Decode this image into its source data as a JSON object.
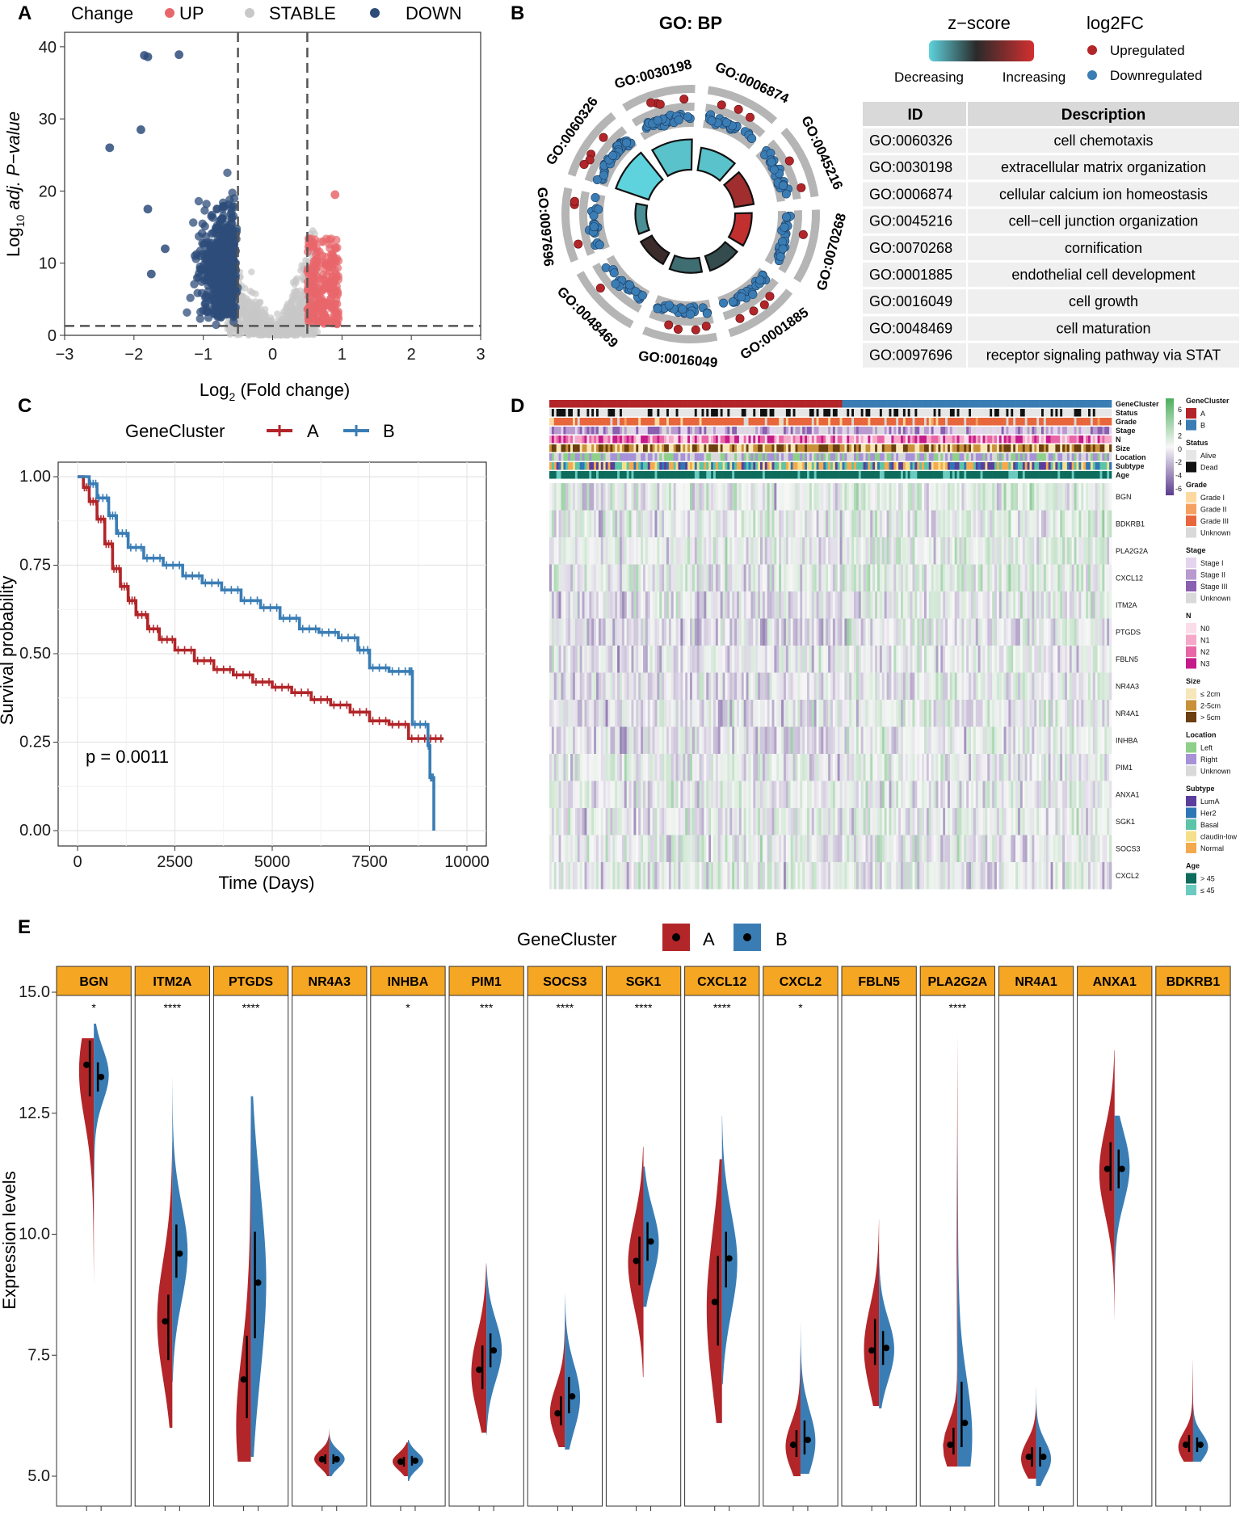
{
  "panels": {
    "a": "A",
    "b": "B",
    "c": "C",
    "d": "D",
    "e": "E"
  },
  "chart_data": [
    {
      "id": "A",
      "type": "scatter",
      "title": "",
      "xlabel": "Log2 (Fold change)",
      "xlabel_parts": [
        "Log",
        "2",
        " (Fold change)"
      ],
      "ylabel_parts": [
        "Log",
        "10",
        " adj. P−value"
      ],
      "xlim": [
        -3,
        3
      ],
      "ylim": [
        0,
        42
      ],
      "xticks": [
        "−3",
        "−2",
        "−1",
        "0",
        "1",
        "2",
        "3"
      ],
      "xtick_values": [
        -3,
        -2,
        -1,
        0,
        1,
        2,
        3
      ],
      "yticks": [
        "0",
        "10",
        "20",
        "30",
        "40"
      ],
      "ytick_values": [
        0,
        10,
        20,
        30,
        40
      ],
      "fc_cutoffs": [
        -0.5,
        0.5
      ],
      "p_cutoff": 1.3,
      "legend_title": "Change",
      "legend": [
        {
          "name": "UP",
          "color": "#E8676B"
        },
        {
          "name": "STABLE",
          "color": "#C8C8C8"
        },
        {
          "name": "DOWN",
          "color": "#2E4C7A"
        }
      ],
      "outlier_points": [
        {
          "x": -1.85,
          "y": 38.8,
          "group": "DOWN"
        },
        {
          "x": -1.8,
          "y": 38.6,
          "group": "DOWN"
        },
        {
          "x": -1.35,
          "y": 38.9,
          "group": "DOWN"
        },
        {
          "x": -2.35,
          "y": 26.0,
          "group": "DOWN"
        },
        {
          "x": -1.8,
          "y": 17.5,
          "group": "DOWN"
        },
        {
          "x": -1.75,
          "y": 8.5,
          "group": "DOWN"
        },
        {
          "x": -1.55,
          "y": 12.0,
          "group": "DOWN"
        },
        {
          "x": -1.9,
          "y": 28.5,
          "group": "DOWN"
        },
        {
          "x": 0.9,
          "y": 19.5,
          "group": "UP"
        }
      ]
    },
    {
      "id": "B",
      "type": "circular-go",
      "title": "GO: BP",
      "zscore_title": "z−score",
      "zscore_low": "Decreasing",
      "zscore_high": "Increasing",
      "log2fc_title": "log2FC",
      "log2fc_legend": [
        {
          "name": "Upregulated",
          "color": "#B22529"
        },
        {
          "name": "Downregulated",
          "color": "#3A7DB5"
        }
      ],
      "table_headers": [
        "ID",
        "Description"
      ],
      "terms": [
        {
          "id": "GO:0060326",
          "desc": "cell chemotaxis",
          "count": 0.95,
          "zscore": -1.0
        },
        {
          "id": "GO:0030198",
          "desc": "extracellular matrix organization",
          "count": 0.82,
          "zscore": -0.9
        },
        {
          "id": "GO:0006874",
          "desc": "cellular calcium ion homeostasis",
          "count": 0.6,
          "zscore": -0.9
        },
        {
          "id": "GO:0045216",
          "desc": "cell−cell junction organization",
          "count": 0.5,
          "zscore": 0.7
        },
        {
          "id": "GO:0070268",
          "desc": "cornification",
          "count": 0.42,
          "zscore": 0.9
        },
        {
          "id": "GO:0001885",
          "desc": "endothelial cell development",
          "count": 0.38,
          "zscore": -0.2
        },
        {
          "id": "GO:0016049",
          "desc": "cell growth",
          "count": 0.35,
          "zscore": -0.4
        },
        {
          "id": "GO:0048469",
          "desc": "cell maturation",
          "count": 0.3,
          "zscore": 0.1
        },
        {
          "id": "GO:0097696",
          "desc": "receptor signaling pathway via STAT",
          "count": 0.25,
          "zscore": -0.6
        }
      ]
    },
    {
      "id": "C",
      "type": "line",
      "legend_title": "GeneCluster",
      "series": [
        {
          "name": "A",
          "color": "#B22529",
          "x": [
            0,
            150,
            300,
            500,
            700,
            900,
            1100,
            1300,
            1500,
            1800,
            2100,
            2500,
            3000,
            3500,
            4000,
            4500,
            5000,
            5500,
            6000,
            6500,
            7000,
            7500,
            8000,
            8500,
            9000,
            9400
          ],
          "y": [
            1.0,
            0.97,
            0.93,
            0.88,
            0.81,
            0.74,
            0.69,
            0.65,
            0.61,
            0.57,
            0.54,
            0.51,
            0.48,
            0.455,
            0.44,
            0.42,
            0.405,
            0.39,
            0.37,
            0.355,
            0.335,
            0.31,
            0.3,
            0.26,
            0.26,
            0.26
          ]
        },
        {
          "name": "B",
          "color": "#3A7DB5",
          "x": [
            0,
            300,
            500,
            800,
            1000,
            1300,
            1700,
            2200,
            2700,
            3200,
            3700,
            4200,
            4700,
            5200,
            5700,
            6200,
            6700,
            7200,
            7500,
            8000,
            8500,
            8600,
            9000,
            9050,
            9150
          ],
          "y": [
            1.0,
            0.98,
            0.94,
            0.89,
            0.84,
            0.8,
            0.77,
            0.75,
            0.72,
            0.7,
            0.68,
            0.65,
            0.63,
            0.6,
            0.57,
            0.56,
            0.545,
            0.51,
            0.46,
            0.45,
            0.45,
            0.3,
            0.24,
            0.15,
            0.0
          ]
        }
      ],
      "xlabel": "Time (Days)",
      "ylabel": "Survival probability",
      "xlim": [
        0,
        10000
      ],
      "ylim": [
        0,
        1
      ],
      "xticks": [
        "0",
        "2500",
        "5000",
        "7500",
        "10000"
      ],
      "xtick_values": [
        0,
        2500,
        5000,
        7500,
        10000
      ],
      "yticks": [
        "0.00",
        "0.25",
        "0.50",
        "0.75",
        "1.00"
      ],
      "ytick_values": [
        0,
        0.25,
        0.5,
        0.75,
        1.0
      ],
      "annotation": "p = 0.0011"
    },
    {
      "id": "D",
      "type": "heatmap",
      "annotation_rows": [
        "GeneCluster",
        "Status",
        "Grade",
        "Stage",
        "N",
        "Size",
        "Location",
        "Subtype",
        "Age"
      ],
      "genes": [
        "BGN",
        "BDKRB1",
        "PLA2G2A",
        "CXCL12",
        "ITM2A",
        "PTGDS",
        "FBLN5",
        "NR4A3",
        "NR4A1",
        "INHBA",
        "PIM1",
        "ANXA1",
        "SGK1",
        "SOCS3",
        "CXCL2"
      ],
      "colorbar_ticks": [
        "6",
        "4",
        "2",
        "0",
        "-2",
        "-4",
        "-6"
      ],
      "legends": [
        {
          "title": "GeneCluster",
          "items": [
            {
              "label": "A",
              "color": "#B22529"
            },
            {
              "label": "B",
              "color": "#3A7DB5"
            }
          ]
        },
        {
          "title": "Status",
          "items": [
            {
              "label": "Alive",
              "color": "#E6E6E6"
            },
            {
              "label": "Dead",
              "color": "#111111"
            }
          ]
        },
        {
          "title": "Grade",
          "items": [
            {
              "label": "Grade I",
              "color": "#FDD9A0"
            },
            {
              "label": "Grade II",
              "color": "#F5A060"
            },
            {
              "label": "Grade III",
              "color": "#E8663C"
            },
            {
              "label": "Unknown",
              "color": "#D9D9D9"
            }
          ]
        },
        {
          "title": "Stage",
          "items": [
            {
              "label": "Stage I",
              "color": "#E4D5EE"
            },
            {
              "label": "Stage II",
              "color": "#B89ACF"
            },
            {
              "label": "Stage III",
              "color": "#8A5FB0"
            },
            {
              "label": "Unknown",
              "color": "#D9D9D9"
            }
          ]
        },
        {
          "title": "N",
          "items": [
            {
              "label": "N0",
              "color": "#FBDDE9"
            },
            {
              "label": "N1",
              "color": "#F5A8C8"
            },
            {
              "label": "N2",
              "color": "#E866A6"
            },
            {
              "label": "N3",
              "color": "#C51B8A"
            }
          ]
        },
        {
          "title": "Size",
          "items": [
            {
              "label": "≤ 2cm",
              "color": "#F6E6B8"
            },
            {
              "label": "2-5cm",
              "color": "#C9913A"
            },
            {
              "label": "> 5cm",
              "color": "#6B3F10"
            }
          ]
        },
        {
          "title": "Location",
          "items": [
            {
              "label": "Left",
              "color": "#8ED08A"
            },
            {
              "label": "Right",
              "color": "#A792D8"
            },
            {
              "label": "Unknown",
              "color": "#D9D9D9"
            }
          ]
        },
        {
          "title": "Subtype",
          "items": [
            {
              "label": "LumA",
              "color": "#5A3E9B"
            },
            {
              "label": "Her2",
              "color": "#2E77B6"
            },
            {
              "label": "Basal",
              "color": "#5CC4A7"
            },
            {
              "label": "claudin-low",
              "color": "#F4E08A"
            },
            {
              "label": "Normal",
              "color": "#F4A94E"
            }
          ]
        },
        {
          "title": "Age",
          "items": [
            {
              "label": "> 45",
              "color": "#0E6C5C"
            },
            {
              "label": "≤ 45",
              "color": "#6BCBC0"
            }
          ]
        }
      ]
    },
    {
      "id": "E",
      "type": "violin",
      "legend_title": "GeneCluster",
      "legend": [
        {
          "name": "A",
          "color": "#B22529"
        },
        {
          "name": "B",
          "color": "#3A7DB5"
        }
      ],
      "ylabel": "Expression levels",
      "ylim": [
        4.8,
        15.2
      ],
      "yticks": [
        "5.0",
        "7.5",
        "10.0",
        "12.5",
        "15.0"
      ],
      "ytick_values": [
        5.0,
        7.5,
        10.0,
        12.5,
        15.0
      ],
      "genes": [
        {
          "name": "BGN",
          "sig": "*",
          "A": {
            "min": 8.95,
            "max": 14.05,
            "q1": 12.85,
            "med": 13.5,
            "q3": 14.0,
            "peak": 13.4
          },
          "B": {
            "min": 10.2,
            "max": 14.35,
            "q1": 12.95,
            "med": 13.25,
            "q3": 13.55,
            "peak": 13.3
          }
        },
        {
          "name": "ITM2A",
          "sig": "****",
          "A": {
            "min": 6.0,
            "max": 11.9,
            "q1": 7.4,
            "med": 8.2,
            "q3": 8.75,
            "peak": 8.2
          },
          "B": {
            "min": 6.95,
            "max": 13.25,
            "q1": 9.1,
            "med": 9.6,
            "q3": 10.2,
            "peak": 9.6
          }
        },
        {
          "name": "PTGDS",
          "sig": "****",
          "A": {
            "min": 5.3,
            "max": 12.8,
            "q1": 6.2,
            "med": 7.0,
            "q3": 7.9,
            "peak": 6.0
          },
          "B": {
            "min": 5.4,
            "max": 12.85,
            "q1": 7.85,
            "med": 9.0,
            "q3": 10.05,
            "peak": 9.0
          }
        },
        {
          "name": "NR4A3",
          "sig": "",
          "A": {
            "min": 5.0,
            "max": 6.0,
            "q1": 5.25,
            "med": 5.35,
            "q3": 5.45,
            "peak": 5.35
          },
          "B": {
            "min": 5.0,
            "max": 5.85,
            "q1": 5.25,
            "med": 5.35,
            "q3": 5.45,
            "peak": 5.35
          }
        },
        {
          "name": "INHBA",
          "sig": "*",
          "A": {
            "min": 5.0,
            "max": 5.7,
            "q1": 5.2,
            "med": 5.3,
            "q3": 5.4,
            "peak": 5.3
          },
          "B": {
            "min": 4.9,
            "max": 5.75,
            "q1": 5.22,
            "med": 5.32,
            "q3": 5.42,
            "peak": 5.32
          }
        },
        {
          "name": "PIM1",
          "sig": "***",
          "A": {
            "min": 5.9,
            "max": 9.4,
            "q1": 6.8,
            "med": 7.2,
            "q3": 7.7,
            "peak": 7.1
          },
          "B": {
            "min": 5.85,
            "max": 9.35,
            "q1": 7.25,
            "med": 7.6,
            "q3": 7.95,
            "peak": 7.6
          }
        },
        {
          "name": "SOCS3",
          "sig": "****",
          "A": {
            "min": 5.6,
            "max": 8.4,
            "q1": 6.05,
            "med": 6.3,
            "q3": 6.65,
            "peak": 6.3
          },
          "B": {
            "min": 5.55,
            "max": 8.75,
            "q1": 6.3,
            "med": 6.65,
            "q3": 7.05,
            "peak": 6.6
          }
        },
        {
          "name": "SGK1",
          "sig": "****",
          "A": {
            "min": 7.05,
            "max": 11.8,
            "q1": 8.95,
            "med": 9.45,
            "q3": 9.95,
            "peak": 9.4
          },
          "B": {
            "min": 8.5,
            "max": 11.4,
            "q1": 9.45,
            "med": 9.85,
            "q3": 10.25,
            "peak": 9.8
          }
        },
        {
          "name": "CXCL12",
          "sig": "****",
          "A": {
            "min": 6.1,
            "max": 11.55,
            "q1": 7.7,
            "med": 8.6,
            "q3": 9.55,
            "peak": 8.4
          },
          "B": {
            "min": 6.9,
            "max": 12.45,
            "q1": 8.9,
            "med": 9.5,
            "q3": 10.05,
            "peak": 9.4
          }
        },
        {
          "name": "CXCL2",
          "sig": "*",
          "A": {
            "min": 5.0,
            "max": 7.7,
            "q1": 5.4,
            "med": 5.65,
            "q3": 5.95,
            "peak": 5.6
          },
          "B": {
            "min": 5.05,
            "max": 8.2,
            "q1": 5.45,
            "med": 5.75,
            "q3": 6.15,
            "peak": 5.7
          }
        },
        {
          "name": "FBLN5",
          "sig": "",
          "A": {
            "min": 6.45,
            "max": 10.3,
            "q1": 7.3,
            "med": 7.6,
            "q3": 8.25,
            "peak": 7.6
          },
          "B": {
            "min": 6.4,
            "max": 9.6,
            "q1": 7.3,
            "med": 7.65,
            "q3": 8.0,
            "peak": 7.6
          }
        },
        {
          "name": "PLA2G2A",
          "sig": "****",
          "A": {
            "min": 5.2,
            "max": 14.15,
            "q1": 5.45,
            "med": 5.65,
            "q3": 6.0,
            "peak": 5.6
          },
          "B": {
            "min": 5.2,
            "max": 12.35,
            "q1": 5.6,
            "med": 6.1,
            "q3": 6.95,
            "peak": 5.8
          }
        },
        {
          "name": "NR4A1",
          "sig": "",
          "A": {
            "min": 4.95,
            "max": 6.5,
            "q1": 5.2,
            "med": 5.4,
            "q3": 5.6,
            "peak": 5.35
          },
          "B": {
            "min": 4.8,
            "max": 6.9,
            "q1": 5.2,
            "med": 5.4,
            "q3": 5.6,
            "peak": 5.35
          }
        },
        {
          "name": "ANXA1",
          "sig": "",
          "A": {
            "min": 8.25,
            "max": 13.8,
            "q1": 10.9,
            "med": 11.35,
            "q3": 11.9,
            "peak": 11.3
          },
          "B": {
            "min": 8.8,
            "max": 12.45,
            "q1": 10.95,
            "med": 11.35,
            "q3": 11.75,
            "peak": 11.4
          }
        },
        {
          "name": "BDKRB1",
          "sig": "",
          "A": {
            "min": 5.3,
            "max": 7.45,
            "q1": 5.5,
            "med": 5.65,
            "q3": 5.85,
            "peak": 5.6
          },
          "B": {
            "min": 5.3,
            "max": 6.55,
            "q1": 5.5,
            "med": 5.65,
            "q3": 5.8,
            "peak": 5.6
          }
        }
      ]
    }
  ]
}
